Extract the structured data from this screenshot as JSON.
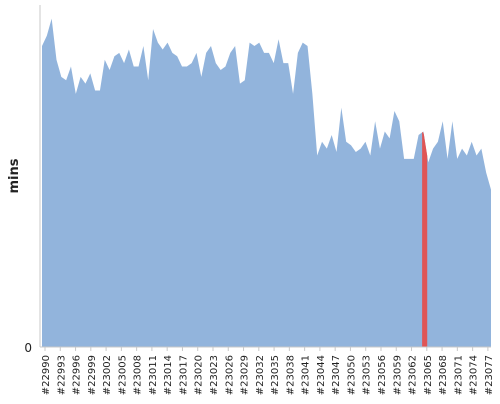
{
  "chart_data": {
    "type": "area",
    "ylabel": "mins",
    "y_tick_labels": [
      "0"
    ],
    "ylim": [
      0,
      100
    ],
    "grid": false,
    "x_tick_labels": [
      "#22990",
      "#22993",
      "#22996",
      "#22999",
      "#23002",
      "#23005",
      "#23008",
      "#23011",
      "#23014",
      "#23017",
      "#23020",
      "#23023",
      "#23026",
      "#23029",
      "#23032",
      "#23035",
      "#23038",
      "#23041",
      "#23044",
      "#23047",
      "#23050",
      "#23053",
      "#23056",
      "#23059",
      "#23062",
      "#23065",
      "#23068",
      "#23071",
      "#23074",
      "#23077"
    ],
    "x_start": 22990,
    "x_end": 23078,
    "series": [
      {
        "color": "#92b4dc",
        "values": [
          88,
          91,
          96,
          84,
          79,
          78,
          82,
          74,
          79,
          77,
          80,
          75,
          75,
          84,
          81,
          85,
          86,
          83,
          87,
          82,
          82,
          88,
          78,
          93,
          89,
          87,
          89,
          86,
          85,
          82,
          82,
          83,
          86,
          79,
          86,
          88,
          83,
          81,
          82,
          86,
          88,
          77,
          78,
          89,
          88,
          89,
          86,
          86,
          83,
          90,
          83,
          83,
          74,
          86,
          89,
          88,
          74,
          56,
          60,
          58,
          62,
          57,
          70,
          60,
          59,
          57,
          58,
          60,
          56,
          66,
          58,
          63,
          61,
          69,
          66,
          55,
          55,
          55,
          62,
          63,
          54,
          58,
          60,
          66,
          55,
          66,
          55,
          58,
          56,
          60,
          56,
          58,
          51,
          46
        ]
      }
    ],
    "highlight": {
      "x": 23065,
      "color": "#e05555"
    }
  }
}
